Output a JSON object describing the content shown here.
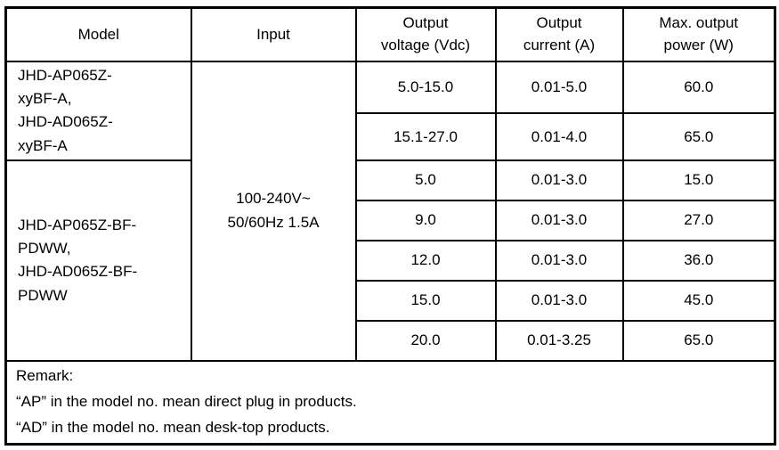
{
  "table": {
    "headers": {
      "model": "Model",
      "input": "Input",
      "voltage": {
        "lines": [
          "Output",
          "voltage (Vdc)"
        ]
      },
      "current": {
        "lines": [
          "Output",
          "current (A)"
        ]
      },
      "power": {
        "lines": [
          "Max. output",
          "power (W)"
        ]
      }
    },
    "model_groups": [
      {
        "lines": [
          "JHD-AP065Z-",
          "xyBF-A,",
          "JHD-AD065Z-",
          "xyBF-A"
        ]
      },
      {
        "lines": [
          "JHD-AP065Z-BF-",
          "PDWW,",
          "JHD-AD065Z-BF-",
          "PDWW"
        ]
      }
    ],
    "input_value": {
      "lines": [
        "100-240V~",
        "50/60Hz 1.5A"
      ]
    },
    "rows": [
      {
        "voltage": "5.0-15.0",
        "current": "0.01-5.0",
        "power": "60.0"
      },
      {
        "voltage": "15.1-27.0",
        "current": "0.01-4.0",
        "power": "65.0"
      },
      {
        "voltage": "5.0",
        "current": "0.01-3.0",
        "power": "15.0"
      },
      {
        "voltage": "9.0",
        "current": "0.01-3.0",
        "power": "27.0"
      },
      {
        "voltage": "12.0",
        "current": "0.01-3.0",
        "power": "36.0"
      },
      {
        "voltage": "15.0",
        "current": "0.01-3.0",
        "power": "45.0"
      },
      {
        "voltage": "20.0",
        "current": "0.01-3.25",
        "power": "65.0"
      }
    ],
    "remark": {
      "lines": [
        "Remark:",
        "“AP” in the model no. mean direct plug in products.",
        "“AD” in the model no. mean desk-top products."
      ]
    },
    "colors": {
      "border": "#000000",
      "text": "#000000",
      "background": "#ffffff"
    }
  }
}
